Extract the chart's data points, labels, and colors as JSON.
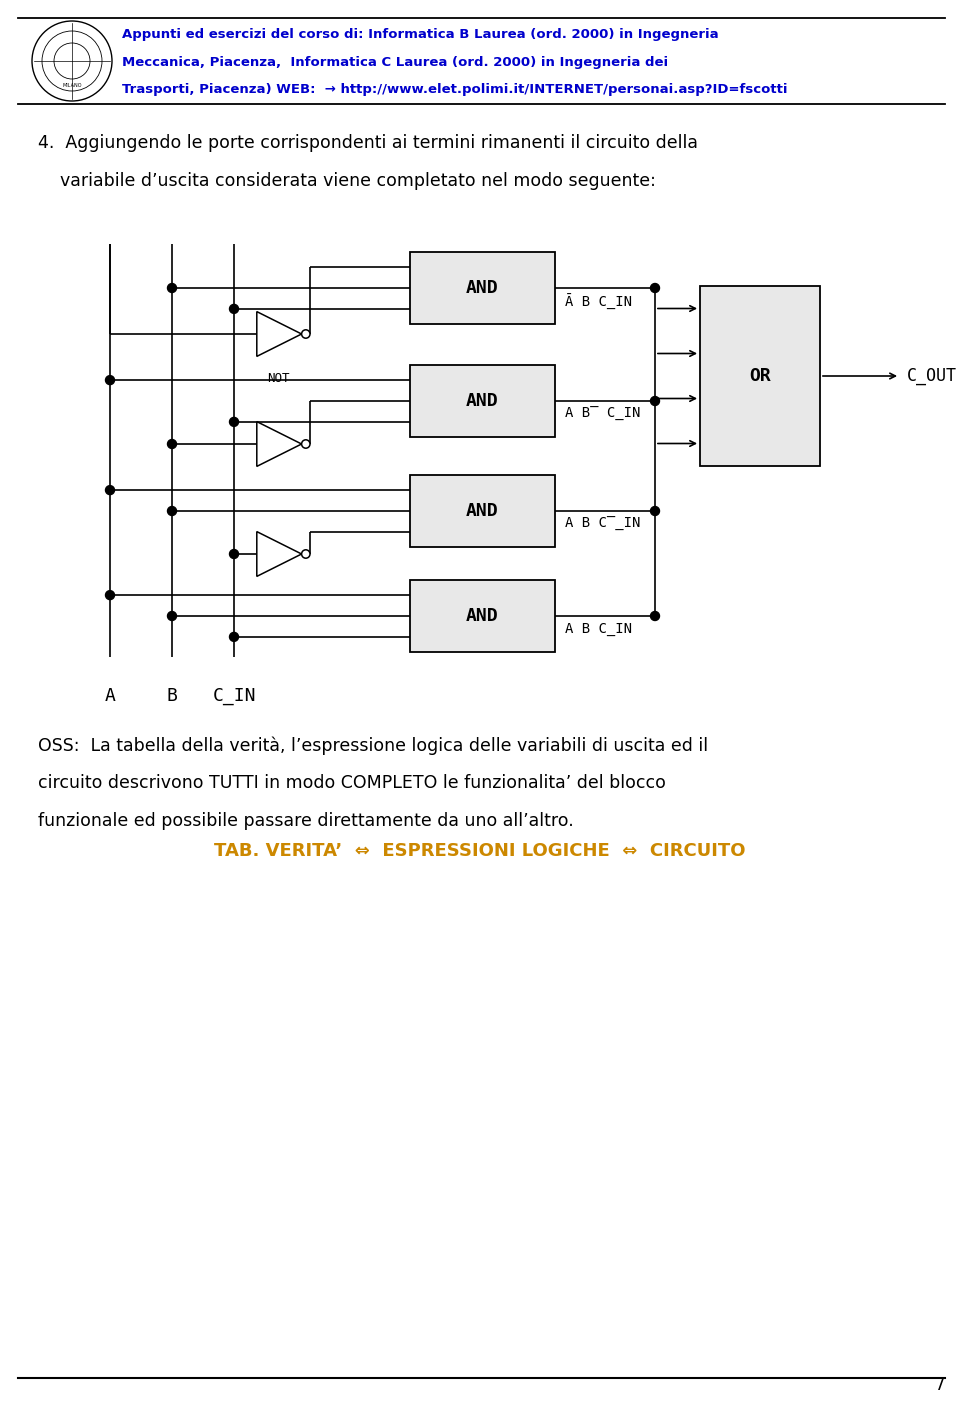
{
  "bg_color": "#ffffff",
  "header_line1": "Appunti ed esercizi del corso di: Informatica B Laurea (ord. 2000) in Ingegneria",
  "header_line2": "Meccanica, Piacenza,  Informatica C Laurea (ord. 2000) in Ingegneria dei",
  "header_line3": "Trasporti, Piacenza) WEB:  → http://www.elet.polimi.it/INTERNET/personai.asp?ID=fscotti",
  "header_color": "#0000cc",
  "header_fontsize": 9.5,
  "para_line1": "4.  Aggiungendo le porte corrispondenti ai termini rimanenti il circuito della",
  "para_line2": "    variabile d’uscita considerata viene completato nel modo seguente:",
  "para_fontsize": 12.5,
  "oss_line1": "OSS:  La tabella della verità, l’espressione logica delle variabili di uscita ed il",
  "oss_line2": "circuito descrivono TUTTI in modo COMPLETO le funzionalita’ del blocco",
  "oss_line3": "funzionale ed possibile passare direttamente da uno all’altro.",
  "tab_text": "TAB. VERITA’  ⇔  ESPRESSIONI LOGICHE  ⇔  CIRCUITO",
  "tab_color": "#cc8800",
  "tab_fontsize": 13,
  "page_number": "7",
  "gate_facecolor": "#e8e8e8",
  "gate_edgecolor": "#000000",
  "wire_color": "#000000",
  "wire_lw": 1.2
}
